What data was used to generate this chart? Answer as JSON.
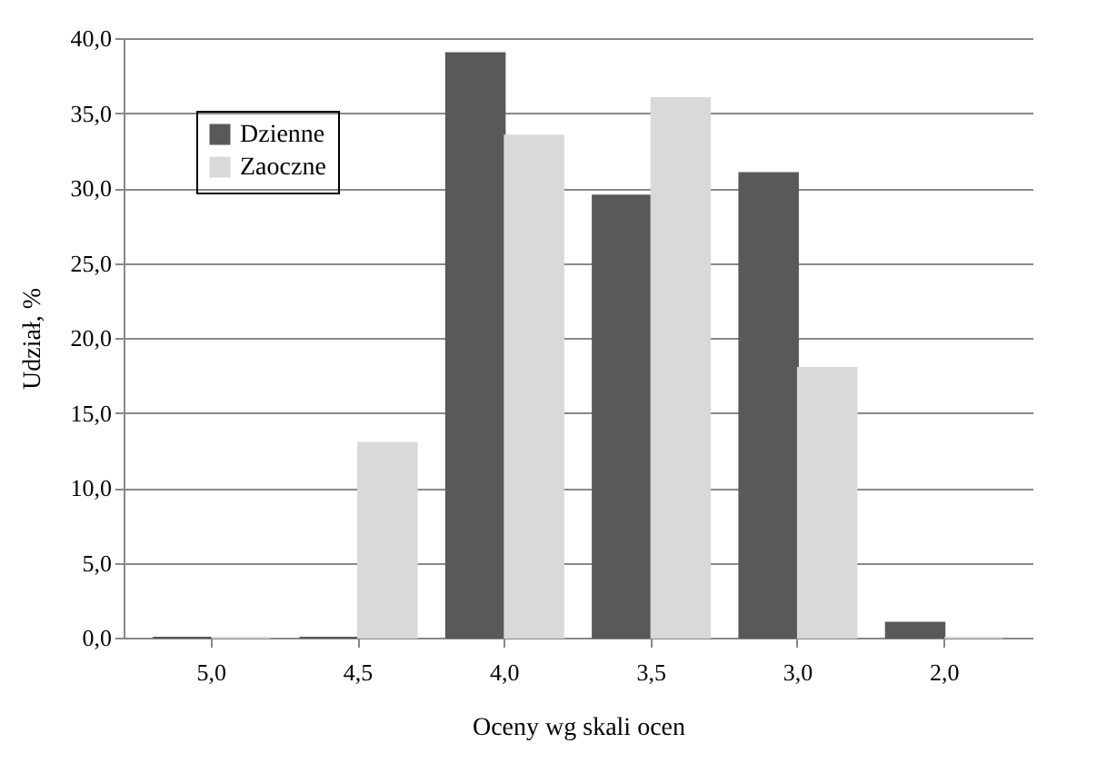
{
  "chart_data": {
    "type": "bar",
    "xlabel": "Oceny wg skali ocen",
    "ylabel": "Udział, %",
    "categories": [
      "5,0",
      "4,5",
      "4,0",
      "3,5",
      "3,0",
      "2,0"
    ],
    "series": [
      {
        "name": "Dzienne",
        "color": "#595959",
        "values": [
          0,
          0,
          39,
          29.5,
          31,
          1
        ]
      },
      {
        "name": "Zaoczne",
        "color": "#d9d9d9",
        "values": [
          0,
          13,
          33.5,
          36,
          18,
          0
        ]
      }
    ],
    "ylim": [
      0,
      40
    ],
    "yticks": [
      {
        "value": 0,
        "label": "0,0"
      },
      {
        "value": 5,
        "label": "5,0"
      },
      {
        "value": 10,
        "label": "10,0"
      },
      {
        "value": 15,
        "label": "15,0"
      },
      {
        "value": 20,
        "label": "20,0"
      },
      {
        "value": 25,
        "label": "25,0"
      },
      {
        "value": 30,
        "label": "30,0"
      },
      {
        "value": 35,
        "label": "35,0"
      },
      {
        "value": 40,
        "label": "40,0"
      }
    ],
    "grid": "y",
    "legend": "top left"
  }
}
